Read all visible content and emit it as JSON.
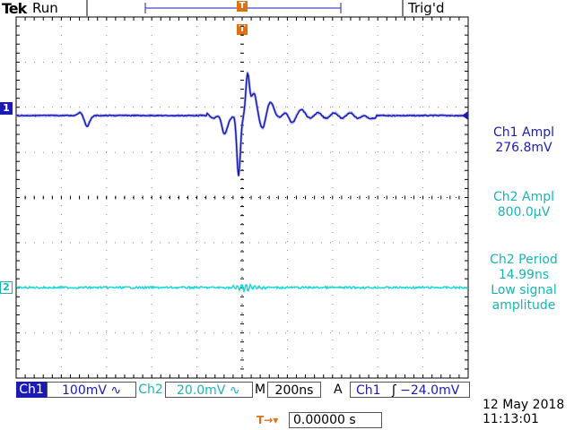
{
  "header": {
    "brand": "Tek",
    "run_state": "Run",
    "trigger_state": "Trig'd",
    "trigger_marker": "T"
  },
  "channels": {
    "ch1_marker": "1",
    "ch2_marker": "2"
  },
  "measurements": [
    {
      "label": "Ch1 Ampl",
      "value": "276.8mV",
      "color": "#1b1bb4"
    },
    {
      "label": "Ch2 Ampl",
      "value": "800.0µV",
      "color": "#19b4b4"
    },
    {
      "label": "Ch2 Period",
      "value": "14.99ns",
      "note1": "Low signal",
      "note2": "amplitude",
      "color": "#19b4b4"
    }
  ],
  "status": {
    "ch1_label": "Ch1",
    "ch1_scale": "100mV",
    "ch1_coupling": "∿",
    "ch2_label": "Ch2",
    "ch2_scale": "20.0mV",
    "ch2_coupling": "∿",
    "m_label": "M",
    "timebase": "200ns",
    "a_label": "A",
    "trig_src": "Ch1",
    "trig_slope": "ʃ",
    "trig_level": "−24.0mV"
  },
  "bottom": {
    "trig_offset_icon": "T→▾",
    "position_value": "0.00000 s",
    "date": "12 May 2018",
    "time": "11:13:01"
  },
  "colors": {
    "ch1": "#1b1bb4",
    "ch2": "#19d8d8",
    "trigger": "#e07010",
    "grid": "#000000"
  }
}
